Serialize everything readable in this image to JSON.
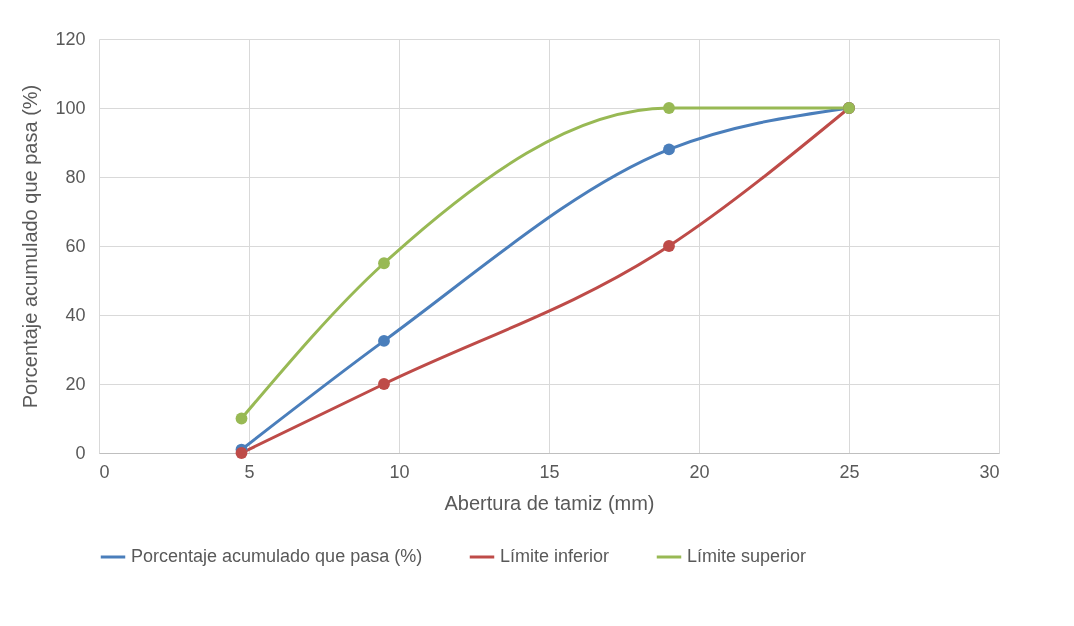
{
  "chart_data": {
    "type": "line",
    "xlabel": "Abertura de tamiz (mm)",
    "ylabel": "Porcentaje acumulado que pasa (%)",
    "x": [
      4.75,
      9.5,
      19,
      25
    ],
    "xlim": [
      0,
      30
    ],
    "xticks": [
      0,
      5,
      10,
      15,
      20,
      25,
      30
    ],
    "ylim": [
      0,
      120
    ],
    "yticks": [
      0,
      20,
      40,
      60,
      80,
      100,
      120
    ],
    "grid": true,
    "legend": "bottom",
    "marker": "circle",
    "line_style": "solid",
    "series": [
      {
        "name": "Porcentaje acumulado que pasa (%)",
        "color": "#4a7ebb",
        "values": [
          1,
          32.5,
          88,
          100
        ]
      },
      {
        "name": "Límite inferior",
        "color": "#be4b48",
        "values": [
          0,
          20,
          60,
          100
        ]
      },
      {
        "name": "Límite superior",
        "color": "#98b954",
        "values": [
          10,
          55,
          100,
          100
        ]
      }
    ]
  }
}
